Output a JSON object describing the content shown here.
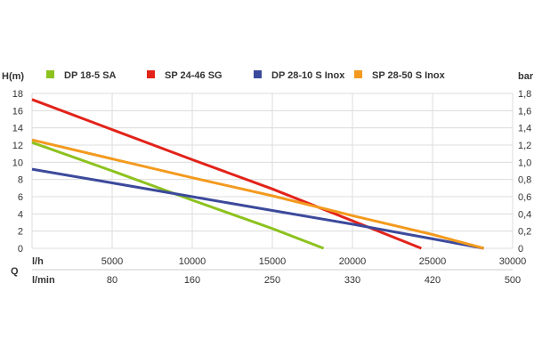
{
  "chart_data": {
    "type": "line",
    "ylabel_left": "H(m)",
    "ylabel_right": "bar",
    "x_row_label": "Q",
    "x_unit_top": "l/h",
    "x_unit_bottom": "l/min",
    "xlim": [
      0,
      30000
    ],
    "ylim": [
      0,
      18
    ],
    "grid": true,
    "legend_placement": "top",
    "x_ticks": [
      "5000",
      "10000",
      "15000",
      "20000",
      "25000",
      "30000"
    ],
    "x_tick_values": [
      5000,
      10000,
      15000,
      20000,
      25000,
      30000
    ],
    "x_ticks_lmin": [
      "80",
      "160",
      "250",
      "330",
      "420",
      "500"
    ],
    "y_ticks_left": [
      "0",
      "2",
      "4",
      "6",
      "8",
      "10",
      "12",
      "14",
      "16",
      "18"
    ],
    "y_ticks_right": [
      "0",
      "0,2",
      "0,4",
      "0,6",
      "0,8",
      "1,0",
      "1,2",
      "1,4",
      "1,6",
      "1,8"
    ],
    "series": [
      {
        "name": "DP 18-5 SA",
        "color": "#8dc21f",
        "x": [
          0,
          5000,
          10000,
          15000,
          18200
        ],
        "y": [
          12.3,
          9.0,
          5.6,
          2.3,
          0
        ]
      },
      {
        "name": "SP 24-46 SG",
        "color": "#e2231a",
        "x": [
          0,
          5000,
          10000,
          15000,
          20000,
          24300
        ],
        "y": [
          17.3,
          13.8,
          10.3,
          6.9,
          3.2,
          0
        ]
      },
      {
        "name": "DP 28-10 S Inox",
        "color": "#3c4a9c",
        "x": [
          0,
          5000,
          10000,
          15000,
          20000,
          25000,
          28200
        ],
        "y": [
          9.2,
          7.6,
          6.0,
          4.4,
          2.8,
          1.1,
          0
        ]
      },
      {
        "name": "SP 28-50 S Inox",
        "color": "#f39a1e",
        "x": [
          0,
          5000,
          10000,
          15000,
          20000,
          25000,
          28200
        ],
        "y": [
          12.6,
          10.4,
          8.2,
          6.1,
          3.8,
          1.6,
          0
        ]
      }
    ]
  }
}
